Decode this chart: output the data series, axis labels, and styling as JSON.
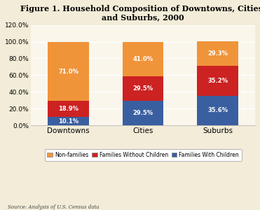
{
  "title": "Figure 1. Household Composition of Downtowns, Cities,\nand Suburbs, 2000",
  "categories": [
    "Downtowns",
    "Cities",
    "Suburbs"
  ],
  "series": {
    "Families With Children": [
      10.1,
      29.5,
      35.6
    ],
    "Families Without Children": [
      18.9,
      29.5,
      35.2
    ],
    "Non-families": [
      71.0,
      41.0,
      29.3
    ]
  },
  "colors": {
    "Families With Children": "#3a5fa0",
    "Families Without Children": "#cc2222",
    "Non-families": "#f0943a"
  },
  "labels": {
    "Families With Children": [
      "10.1%",
      "29.5%",
      "35.6%"
    ],
    "Families Without Children": [
      "18.9%",
      "29.5%",
      "35.2%"
    ],
    "Non-families": [
      "71.0%",
      "41.0%",
      "29.3%"
    ]
  },
  "ylim": [
    0,
    120
  ],
  "yticks": [
    0,
    20,
    40,
    60,
    80,
    100,
    120
  ],
  "yticklabels": [
    "0.0%",
    "20.0%",
    "40.0%",
    "60.0%",
    "80.0%",
    "100.0%",
    "120.0%"
  ],
  "background_color": "#f2ecd8",
  "plot_bg_color": "#faf6ec",
  "source_text": "Source: Analysis of U.S. Census data",
  "bar_width": 0.55,
  "legend_order": [
    "Non-families",
    "Families Without Children",
    "Families With Children"
  ]
}
